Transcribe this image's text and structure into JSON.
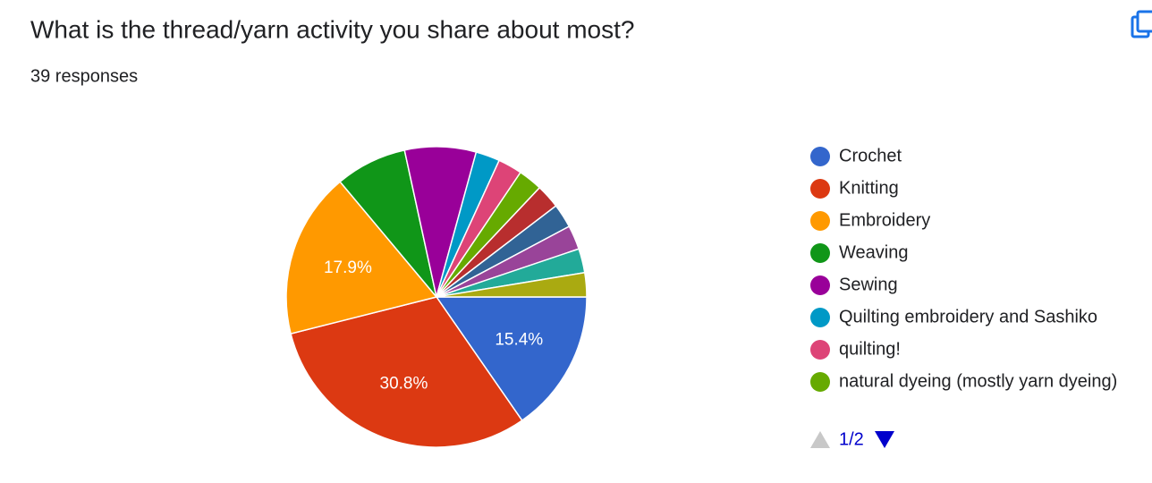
{
  "chart_data": {
    "type": "pie",
    "title": "What is the thread/yarn activity you share about most?",
    "subtitle": "39 responses",
    "categories": [
      "Crochet",
      "Knitting",
      "Embroidery",
      "Weaving",
      "Sewing",
      "Quilting embroidery and Sashiko",
      "quilting!",
      "natural dyeing (mostly yarn dyeing)",
      null,
      null,
      null,
      null,
      null
    ],
    "values": [
      15.4,
      30.8,
      17.9,
      7.7,
      7.7,
      2.6,
      2.6,
      2.6,
      2.6,
      2.6,
      2.6,
      2.6,
      2.6
    ],
    "value_labels": [
      "15.4%",
      "30.8%",
      "17.9%",
      null,
      null,
      null,
      null,
      null,
      null,
      null,
      null,
      null,
      null
    ],
    "colors": [
      "#3366cc",
      "#dc3912",
      "#ff9900",
      "#109618",
      "#990099",
      "#0099c6",
      "#dd4477",
      "#66aa00",
      "#b82e2e",
      "#316395",
      "#994499",
      "#22aa99",
      "#aaaa11"
    ],
    "legend_page": "1/2"
  }
}
